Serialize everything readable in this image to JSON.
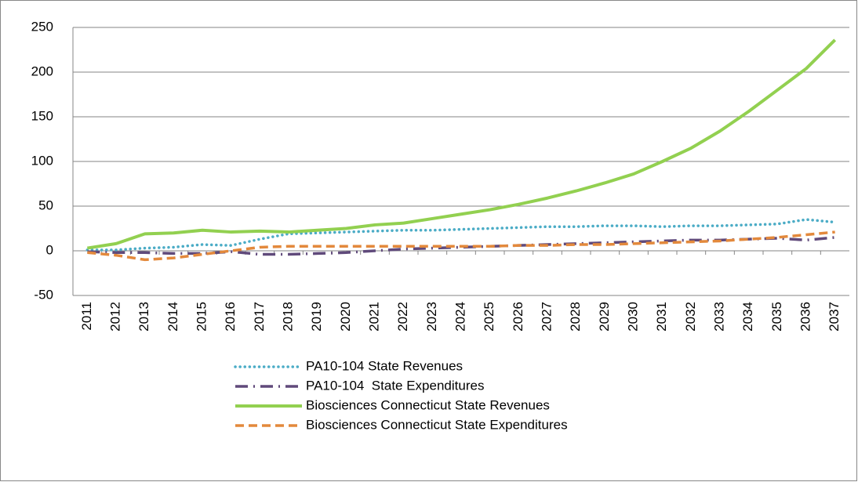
{
  "chart_data": {
    "type": "line",
    "categories": [
      "2011",
      "2012",
      "2013",
      "2014",
      "2015",
      "2016",
      "2017",
      "2018",
      "2019",
      "2020",
      "2021",
      "2022",
      "2023",
      "2024",
      "2025",
      "2026",
      "2027",
      "2028",
      "2029",
      "2030",
      "2031",
      "2032",
      "2033",
      "2034",
      "2035",
      "2036",
      "2037"
    ],
    "series": [
      {
        "name": "PA10-104 State Revenues",
        "color": "#4bacc6",
        "style": "dotted",
        "values": [
          1,
          1,
          3,
          4,
          7,
          6,
          13,
          19,
          20,
          21,
          22,
          23,
          23,
          24,
          25,
          26,
          27,
          27,
          28,
          28,
          27,
          28,
          28,
          29,
          30,
          35,
          32
        ]
      },
      {
        "name": "PA10-104  State Expenditures",
        "color": "#604a7b",
        "style": "dash-dot",
        "values": [
          -1,
          -2,
          -2,
          -3,
          -3,
          -1,
          -4,
          -4,
          -3,
          -2,
          0,
          2,
          3,
          4,
          5,
          6,
          7,
          8,
          9,
          10,
          11,
          12,
          12,
          13,
          14,
          12,
          15
        ]
      },
      {
        "name": "Biosciences Connecticut State Revenues",
        "color": "#92d050",
        "style": "solid",
        "values": [
          3,
          8,
          19,
          20,
          23,
          21,
          22,
          21,
          23,
          25,
          29,
          31,
          36,
          41,
          46,
          52,
          59,
          67,
          76,
          86,
          100,
          115,
          134,
          156,
          180,
          204,
          236
        ]
      },
      {
        "name": "Biosciences Connecticut State Expenditures",
        "color": "#e3893c",
        "style": "dashed",
        "values": [
          -2,
          -5,
          -10,
          -8,
          -4,
          0,
          4,
          5,
          5,
          5,
          5,
          5,
          5,
          5,
          5,
          6,
          6,
          7,
          7,
          8,
          9,
          10,
          11,
          13,
          15,
          18,
          21
        ]
      }
    ],
    "ylim": [
      -50,
      250
    ],
    "yticks": [
      -50,
      0,
      50,
      100,
      150,
      200,
      250
    ],
    "grid": true,
    "legend": "bottom"
  }
}
